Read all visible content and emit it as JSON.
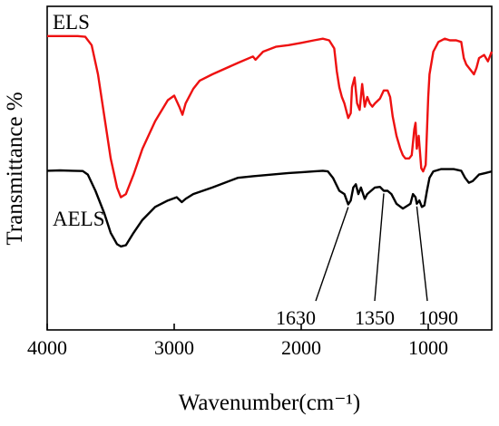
{
  "chart_data": {
    "type": "line",
    "xlabel": "Wavenumber(cm⁻¹)",
    "ylabel": "Transmittance %",
    "xlim": [
      4000,
      500
    ],
    "x_reversed": true,
    "x_ticks": [
      4000,
      3000,
      2000,
      1000
    ],
    "y_ticks_shown": false,
    "grid": false,
    "series": [
      {
        "name": "ELS",
        "color": "#ee1111",
        "points": [
          [
            4000,
            0.908
          ],
          [
            3900,
            0.908
          ],
          [
            3800,
            0.908
          ],
          [
            3760,
            0.908
          ],
          [
            3700,
            0.906
          ],
          [
            3650,
            0.88
          ],
          [
            3600,
            0.79
          ],
          [
            3550,
            0.66
          ],
          [
            3500,
            0.53
          ],
          [
            3450,
            0.44
          ],
          [
            3420,
            0.41
          ],
          [
            3380,
            0.42
          ],
          [
            3320,
            0.48
          ],
          [
            3250,
            0.56
          ],
          [
            3150,
            0.645
          ],
          [
            3050,
            0.71
          ],
          [
            3000,
            0.724
          ],
          [
            2960,
            0.69
          ],
          [
            2935,
            0.665
          ],
          [
            2910,
            0.7
          ],
          [
            2850,
            0.745
          ],
          [
            2800,
            0.77
          ],
          [
            2700,
            0.79
          ],
          [
            2500,
            0.825
          ],
          [
            2380,
            0.845
          ],
          [
            2360,
            0.835
          ],
          [
            2300,
            0.86
          ],
          [
            2200,
            0.875
          ],
          [
            2100,
            0.88
          ],
          [
            2000,
            0.887
          ],
          [
            1900,
            0.895
          ],
          [
            1830,
            0.9
          ],
          [
            1780,
            0.895
          ],
          [
            1740,
            0.87
          ],
          [
            1720,
            0.8
          ],
          [
            1700,
            0.75
          ],
          [
            1680,
            0.72
          ],
          [
            1660,
            0.7
          ],
          [
            1630,
            0.655
          ],
          [
            1610,
            0.67
          ],
          [
            1600,
            0.75
          ],
          [
            1580,
            0.78
          ],
          [
            1560,
            0.7
          ],
          [
            1540,
            0.68
          ],
          [
            1520,
            0.76
          ],
          [
            1500,
            0.69
          ],
          [
            1480,
            0.72
          ],
          [
            1460,
            0.7
          ],
          [
            1440,
            0.69
          ],
          [
            1420,
            0.7
          ],
          [
            1380,
            0.715
          ],
          [
            1350,
            0.74
          ],
          [
            1320,
            0.74
          ],
          [
            1300,
            0.72
          ],
          [
            1280,
            0.66
          ],
          [
            1250,
            0.6
          ],
          [
            1220,
            0.56
          ],
          [
            1200,
            0.54
          ],
          [
            1180,
            0.53
          ],
          [
            1150,
            0.53
          ],
          [
            1130,
            0.54
          ],
          [
            1110,
            0.62
          ],
          [
            1100,
            0.64
          ],
          [
            1090,
            0.56
          ],
          [
            1075,
            0.6
          ],
          [
            1055,
            0.5
          ],
          [
            1040,
            0.49
          ],
          [
            1020,
            0.51
          ],
          [
            1000,
            0.72
          ],
          [
            990,
            0.79
          ],
          [
            960,
            0.86
          ],
          [
            920,
            0.89
          ],
          [
            870,
            0.9
          ],
          [
            830,
            0.895
          ],
          [
            780,
            0.895
          ],
          [
            740,
            0.89
          ],
          [
            720,
            0.84
          ],
          [
            700,
            0.82
          ],
          [
            660,
            0.8
          ],
          [
            640,
            0.79
          ],
          [
            620,
            0.81
          ],
          [
            600,
            0.84
          ],
          [
            560,
            0.85
          ],
          [
            530,
            0.83
          ],
          [
            500,
            0.86
          ]
        ]
      },
      {
        "name": "AELS",
        "color": "#000000",
        "points": [
          [
            4000,
            0.492
          ],
          [
            3900,
            0.493
          ],
          [
            3800,
            0.492
          ],
          [
            3720,
            0.491
          ],
          [
            3680,
            0.48
          ],
          [
            3620,
            0.43
          ],
          [
            3550,
            0.36
          ],
          [
            3500,
            0.3
          ],
          [
            3450,
            0.265
          ],
          [
            3420,
            0.258
          ],
          [
            3380,
            0.262
          ],
          [
            3320,
            0.3
          ],
          [
            3250,
            0.34
          ],
          [
            3150,
            0.38
          ],
          [
            3050,
            0.4
          ],
          [
            2980,
            0.41
          ],
          [
            2940,
            0.395
          ],
          [
            2910,
            0.405
          ],
          [
            2850,
            0.42
          ],
          [
            2700,
            0.44
          ],
          [
            2500,
            0.47
          ],
          [
            2380,
            0.475
          ],
          [
            2300,
            0.478
          ],
          [
            2100,
            0.485
          ],
          [
            2000,
            0.487
          ],
          [
            1900,
            0.49
          ],
          [
            1830,
            0.492
          ],
          [
            1790,
            0.49
          ],
          [
            1750,
            0.47
          ],
          [
            1700,
            0.43
          ],
          [
            1660,
            0.42
          ],
          [
            1630,
            0.388
          ],
          [
            1610,
            0.4
          ],
          [
            1590,
            0.44
          ],
          [
            1570,
            0.45
          ],
          [
            1550,
            0.42
          ],
          [
            1530,
            0.44
          ],
          [
            1500,
            0.405
          ],
          [
            1480,
            0.42
          ],
          [
            1450,
            0.43
          ],
          [
            1420,
            0.44
          ],
          [
            1380,
            0.442
          ],
          [
            1350,
            0.43
          ],
          [
            1320,
            0.43
          ],
          [
            1290,
            0.42
          ],
          [
            1250,
            0.39
          ],
          [
            1200,
            0.375
          ],
          [
            1160,
            0.385
          ],
          [
            1140,
            0.39
          ],
          [
            1120,
            0.42
          ],
          [
            1100,
            0.41
          ],
          [
            1090,
            0.39
          ],
          [
            1070,
            0.4
          ],
          [
            1050,
            0.38
          ],
          [
            1030,
            0.385
          ],
          [
            1010,
            0.43
          ],
          [
            990,
            0.47
          ],
          [
            960,
            0.49
          ],
          [
            900,
            0.497
          ],
          [
            800,
            0.497
          ],
          [
            740,
            0.492
          ],
          [
            710,
            0.47
          ],
          [
            680,
            0.455
          ],
          [
            650,
            0.46
          ],
          [
            600,
            0.48
          ],
          [
            550,
            0.485
          ],
          [
            500,
            0.49
          ]
        ]
      }
    ],
    "series_labels": [
      "ELS",
      "AELS"
    ],
    "annotations": [
      {
        "text": "1630",
        "x": 1630
      },
      {
        "text": "1350",
        "x": 1350
      },
      {
        "text": "1090",
        "x": 1090
      }
    ]
  }
}
